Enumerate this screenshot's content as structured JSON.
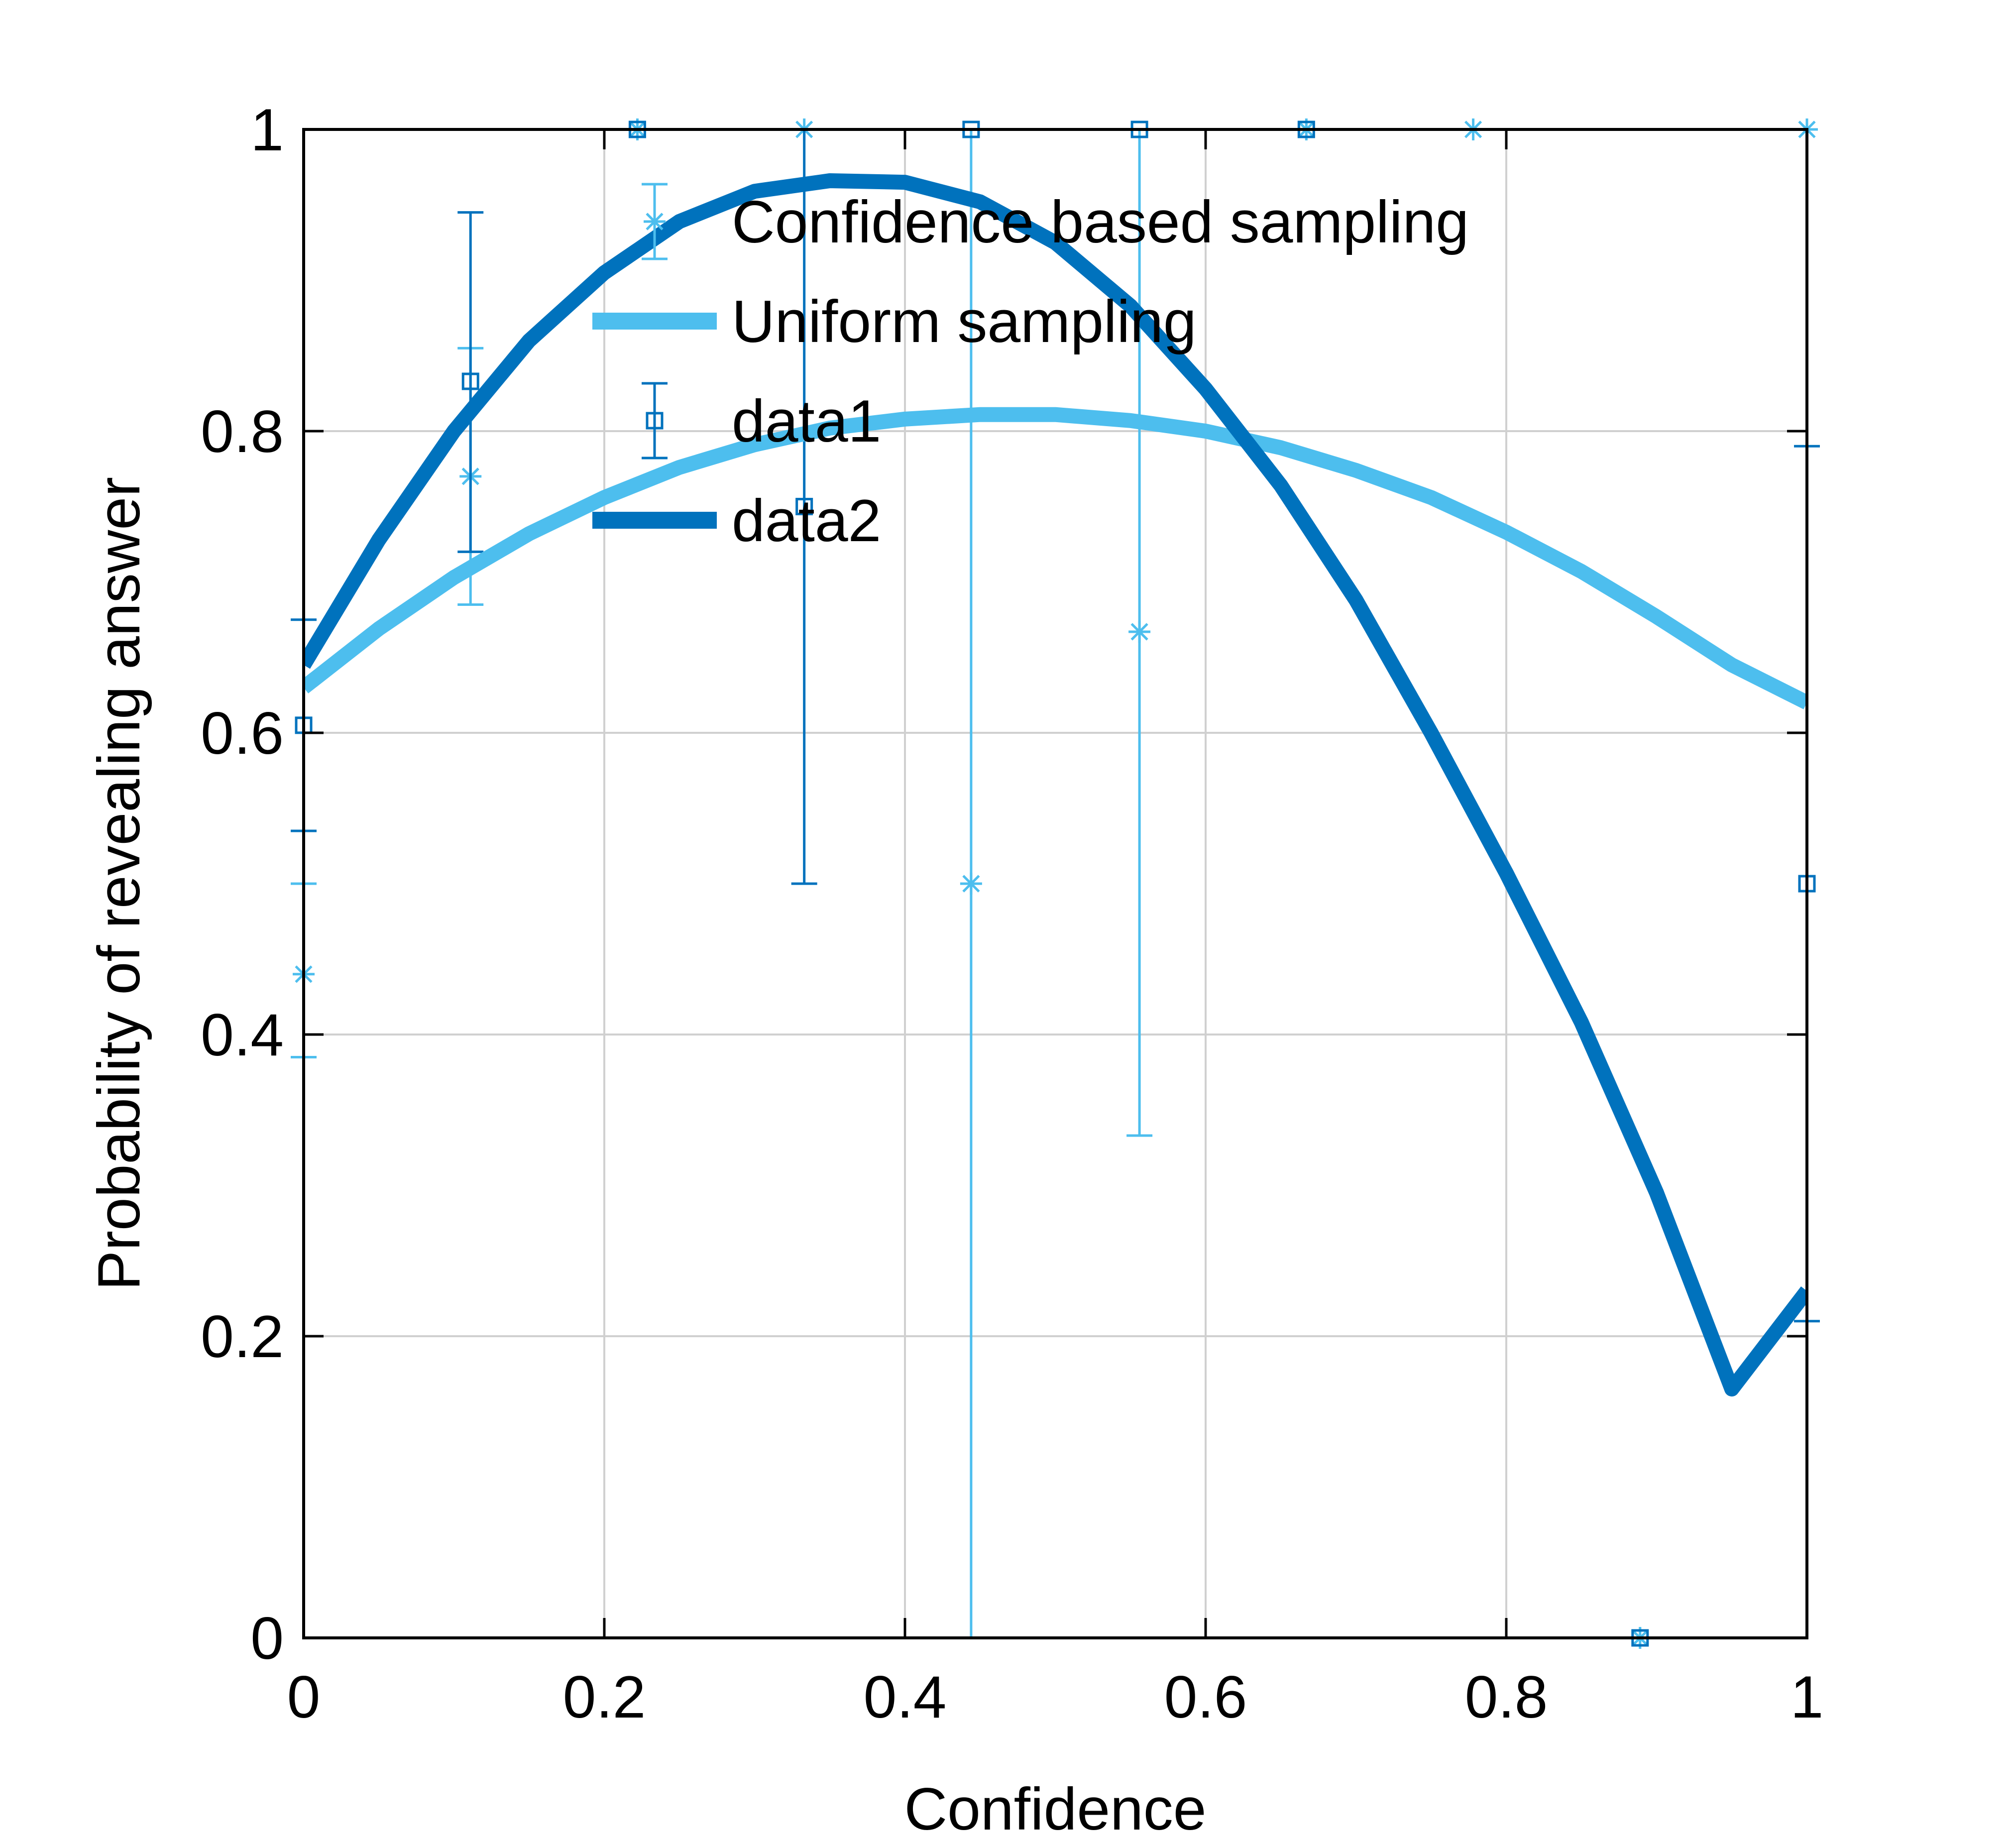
{
  "chart_data": {
    "type": "scatter",
    "title": "",
    "xlabel": "Confidence",
    "ylabel": "Probability of revealing answer",
    "xlim": [
      0,
      1
    ],
    "ylim": [
      0,
      1
    ],
    "x_ticks": [
      "0",
      "0.2",
      "0.4",
      "0.6",
      "0.8",
      "1"
    ],
    "y_ticks": [
      "0",
      "0.2",
      "0.4",
      "0.6",
      "0.8",
      "1"
    ],
    "grid": true,
    "legend_position": "top-center",
    "series": [
      {
        "name": "Confidence based sampling",
        "kind": "errorbar",
        "marker": "asterisk",
        "color": "#4DBEEE",
        "points": [
          {
            "x": 0.0,
            "y": 0.44,
            "lo": 0.385,
            "hi": 0.5
          },
          {
            "x": 0.111,
            "y": 0.77,
            "lo": 0.685,
            "hi": 0.855
          },
          {
            "x": 0.222,
            "y": 1.0,
            "lo": 1.0,
            "hi": 1.0
          },
          {
            "x": 0.333,
            "y": 1.0,
            "lo": 1.0,
            "hi": 1.0
          },
          {
            "x": 0.444,
            "y": 0.5,
            "lo": 0.0,
            "hi": 1.0
          },
          {
            "x": 0.556,
            "y": 0.667,
            "lo": 0.333,
            "hi": 1.0
          },
          {
            "x": 0.667,
            "y": 1.0,
            "lo": 1.0,
            "hi": 1.0
          },
          {
            "x": 0.778,
            "y": 1.0,
            "lo": 1.0,
            "hi": 1.0
          },
          {
            "x": 0.889,
            "y": 0.0,
            "lo": 0.0,
            "hi": 0.0
          },
          {
            "x": 1.0,
            "y": 1.0,
            "lo": 1.0,
            "hi": 1.0
          }
        ]
      },
      {
        "name": "Uniform sampling",
        "kind": "line",
        "color": "#4DBEEE",
        "x": [
          0,
          0.05,
          0.1,
          0.15,
          0.2,
          0.25,
          0.3,
          0.35,
          0.4,
          0.45,
          0.5,
          0.55,
          0.6,
          0.65,
          0.7,
          0.75,
          0.8,
          0.85,
          0.9,
          0.95,
          1.0
        ],
        "y": [
          0.63,
          0.669,
          0.703,
          0.732,
          0.756,
          0.776,
          0.791,
          0.802,
          0.808,
          0.811,
          0.811,
          0.807,
          0.8,
          0.789,
          0.774,
          0.756,
          0.733,
          0.707,
          0.677,
          0.645,
          0.62
        ]
      },
      {
        "name": "data1",
        "kind": "errorbar",
        "marker": "square",
        "color": "#0072BD",
        "points": [
          {
            "x": 0.0,
            "y": 0.605,
            "lo": 0.535,
            "hi": 0.675
          },
          {
            "x": 0.111,
            "y": 0.833,
            "lo": 0.72,
            "hi": 0.945
          },
          {
            "x": 0.222,
            "y": 1.0,
            "lo": 1.0,
            "hi": 1.0
          },
          {
            "x": 0.333,
            "y": 0.75,
            "lo": 0.5,
            "hi": 1.0
          },
          {
            "x": 0.444,
            "y": 1.0,
            "lo": 1.0,
            "hi": 1.0
          },
          {
            "x": 0.556,
            "y": 1.0,
            "lo": 1.0,
            "hi": 1.0
          },
          {
            "x": 0.667,
            "y": 1.0,
            "lo": 1.0,
            "hi": 1.0
          },
          {
            "x": 0.889,
            "y": 0.0,
            "lo": 0.0,
            "hi": 0.0
          },
          {
            "x": 1.0,
            "y": 0.5,
            "lo": 0.21,
            "hi": 0.79
          }
        ]
      },
      {
        "name": "data2",
        "kind": "line",
        "color": "#0072BD",
        "x": [
          0,
          0.05,
          0.1,
          0.15,
          0.2,
          0.25,
          0.3,
          0.35,
          0.4,
          0.45,
          0.5,
          0.55,
          0.6,
          0.65,
          0.7,
          0.75,
          0.8,
          0.85,
          0.9,
          0.95,
          1.0
        ],
        "y": [
          0.645,
          0.728,
          0.8,
          0.86,
          0.905,
          0.939,
          0.959,
          0.966,
          0.965,
          0.952,
          0.925,
          0.883,
          0.828,
          0.764,
          0.688,
          0.6,
          0.507,
          0.408,
          0.295,
          0.165,
          0.23
        ]
      }
    ]
  }
}
